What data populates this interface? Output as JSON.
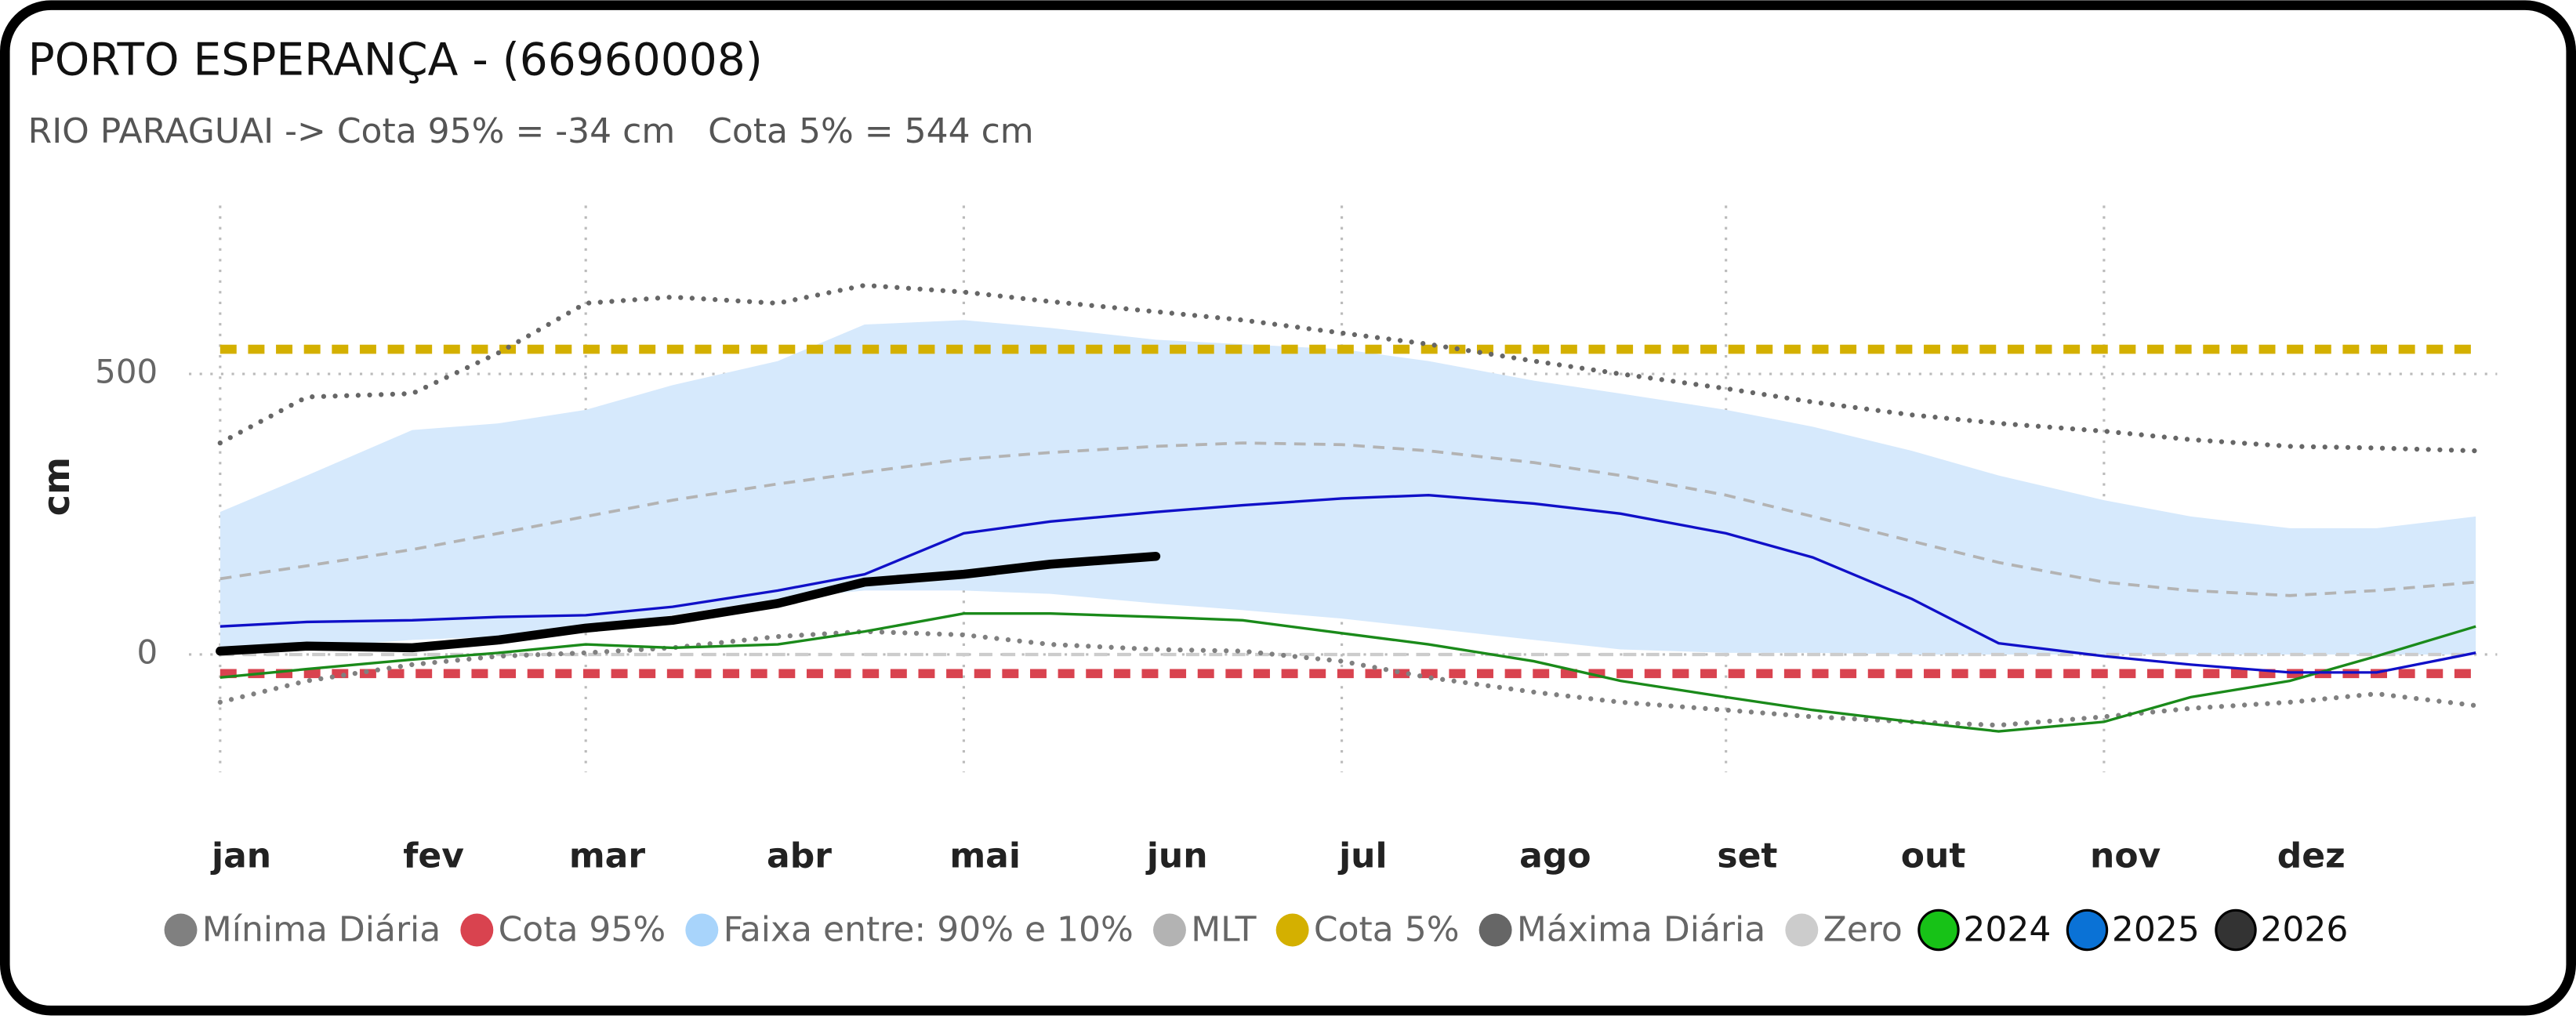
{
  "chart_data": {
    "type": "line",
    "title": "PORTO ESPERANÇA - (66960008)",
    "subtitle": "RIO PARAGUAI -> Cota 95% = -34 cm   Cota 5% = 544 cm",
    "y_label": "cm",
    "x": [
      1,
      15,
      32,
      46,
      60,
      74,
      91,
      105,
      121,
      135,
      152,
      166,
      182,
      196,
      213,
      227,
      244,
      258,
      274,
      288,
      305,
      319,
      335,
      349,
      365
    ],
    "xlim": [
      1,
      365
    ],
    "xticks": [
      {
        "value": 1,
        "label": "jan"
      },
      {
        "value": 32,
        "label": "fev"
      },
      {
        "value": 60,
        "label": "mar"
      },
      {
        "value": 91,
        "label": "abr"
      },
      {
        "value": 121,
        "label": "mai"
      },
      {
        "value": 152,
        "label": "jun"
      },
      {
        "value": 182,
        "label": "jul"
      },
      {
        "value": 213,
        "label": "ago"
      },
      {
        "value": 244,
        "label": "set"
      },
      {
        "value": 274,
        "label": "out"
      },
      {
        "value": 305,
        "label": "nov"
      },
      {
        "value": 335,
        "label": "dez"
      }
    ],
    "ylim": [
      -210,
      800
    ],
    "yticks": [
      0,
      500
    ],
    "grid": true,
    "series": [
      {
        "name": "Mínima Diária",
        "color": "#808080",
        "style": "dotted",
        "values": [
          -85,
          -47,
          -18,
          -3,
          3,
          12,
          32,
          41,
          35,
          18,
          9,
          6,
          -12,
          -41,
          -67,
          -85,
          -99,
          -111,
          -120,
          -126,
          -111,
          -96,
          -85,
          -70,
          -91
        ]
      },
      {
        "name": "Cota 95%",
        "color": "#d9434f",
        "style": "dashed",
        "value": -34
      },
      {
        "name": "Faixa entre:     90% e 10%",
        "color": "#a8d4fb",
        "fill": "#d6e9fc",
        "kind": "band",
        "upper": [
          254,
          319,
          400,
          412,
          436,
          480,
          523,
          588,
          596,
          582,
          561,
          553,
          544,
          523,
          488,
          465,
          436,
          406,
          363,
          319,
          275,
          246,
          225,
          225,
          246
        ],
        "lower": [
          12,
          12,
          26,
          32,
          47,
          70,
          99,
          114,
          114,
          108,
          91,
          79,
          64,
          47,
          26,
          9,
          3,
          3,
          0,
          0,
          0,
          0,
          0,
          0,
          0
        ]
      },
      {
        "name": "MLT",
        "color": "#b3b3b3",
        "style": "dashed",
        "values": [
          135,
          158,
          187,
          216,
          246,
          275,
          304,
          325,
          348,
          360,
          371,
          377,
          374,
          363,
          342,
          319,
          284,
          246,
          202,
          164,
          129,
          114,
          105,
          114,
          129
        ]
      },
      {
        "name": "Cota 5%",
        "color": "#d4b000",
        "style": "dashed",
        "value": 544
      },
      {
        "name": "Máxima Diária",
        "color": "#666666",
        "style": "dotted",
        "values": [
          377,
          459,
          465,
          538,
          626,
          637,
          626,
          658,
          646,
          629,
          611,
          596,
          573,
          553,
          523,
          500,
          474,
          450,
          427,
          412,
          398,
          383,
          371,
          368,
          363
        ]
      },
      {
        "name": "Zero",
        "color": "#cccccc",
        "style": "dashed",
        "value": 0
      },
      {
        "name": "2024",
        "color": "#1a8a1a",
        "marker_color": "#17c217",
        "style": "solid",
        "values": [
          -41,
          -26,
          -9,
          3,
          18,
          12,
          18,
          41,
          73,
          73,
          67,
          61,
          38,
          18,
          -12,
          -47,
          -76,
          -99,
          -120,
          -137,
          -120,
          -76,
          -47,
          -3,
          50
        ]
      },
      {
        "name": "2025",
        "color": "#1010c8",
        "marker_color": "#0a72d6",
        "style": "solid",
        "values": [
          50,
          58,
          61,
          67,
          70,
          85,
          114,
          143,
          216,
          237,
          254,
          266,
          278,
          284,
          269,
          251,
          216,
          173,
          99,
          20,
          -3,
          -18,
          -32,
          -32,
          3
        ]
      },
      {
        "name": "2026",
        "color": "#000000",
        "marker_color": "#333333",
        "style": "thick",
        "values": [
          6,
          15,
          12,
          26,
          47,
          61,
          91,
          129,
          143,
          161,
          175,
          null,
          null,
          null,
          null,
          null,
          null,
          null,
          null,
          null,
          null,
          null,
          null,
          null,
          null
        ]
      }
    ]
  }
}
